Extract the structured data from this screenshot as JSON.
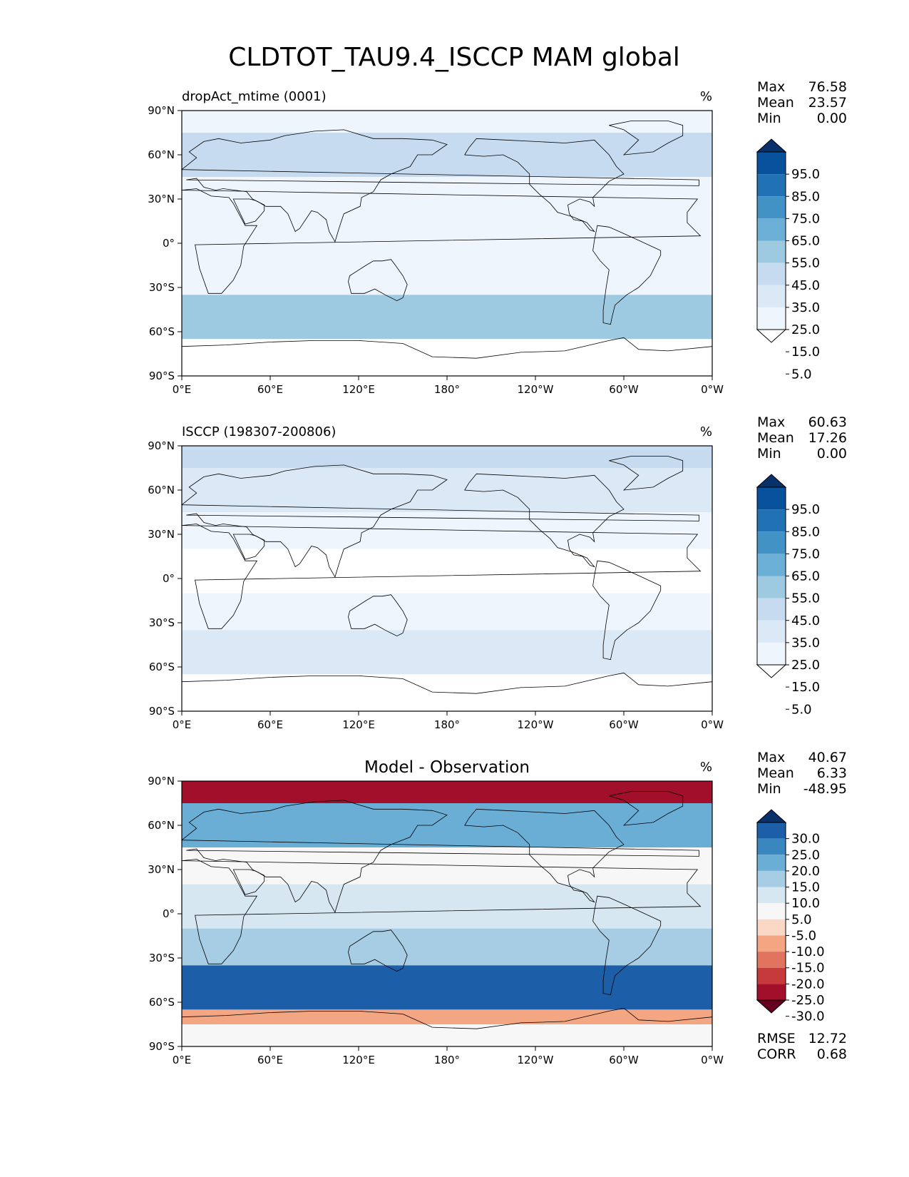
{
  "title": "CLDTOT_TAU9.4_ISCCP MAM global",
  "axes": {
    "lat_ticks": [
      "90°N",
      "60°N",
      "30°N",
      "0°",
      "30°S",
      "60°S",
      "90°S"
    ],
    "lon_ticks": [
      "0°E",
      "60°E",
      "120°E",
      "180°",
      "120°W",
      "60°W",
      "0°W"
    ]
  },
  "panels": [
    {
      "id": "model",
      "left_title": "dropAct_mtime (0001)",
      "center_title": "",
      "units": "%",
      "stats": [
        {
          "label": "Max",
          "value": "76.58"
        },
        {
          "label": "Mean",
          "value": "23.57"
        },
        {
          "label": "Min",
          "value": "0.00"
        }
      ],
      "colorbar": {
        "labels": [
          "95.0",
          "85.0",
          "75.0",
          "65.0",
          "55.0",
          "45.0",
          "35.0",
          "25.0",
          "15.0",
          "5.0"
        ],
        "colors": [
          "#08306b",
          "#08519c",
          "#2171b5",
          "#4292c6",
          "#6baed6",
          "#9ecae1",
          "#c6dbef",
          "#dbe9f6",
          "#eef5fc",
          "#ffffff"
        ],
        "extend_top_color": "#08306b",
        "extend_bottom_color": "#ffffff"
      },
      "footer_stats": []
    },
    {
      "id": "obs",
      "left_title": "ISCCP (198307-200806)",
      "center_title": "",
      "units": "%",
      "stats": [
        {
          "label": "Max",
          "value": "60.63"
        },
        {
          "label": "Mean",
          "value": "17.26"
        },
        {
          "label": "Min",
          "value": "0.00"
        }
      ],
      "colorbar": {
        "labels": [
          "95.0",
          "85.0",
          "75.0",
          "65.0",
          "55.0",
          "45.0",
          "35.0",
          "25.0",
          "15.0",
          "5.0"
        ],
        "colors": [
          "#08306b",
          "#08519c",
          "#2171b5",
          "#4292c6",
          "#6baed6",
          "#9ecae1",
          "#c6dbef",
          "#dbe9f6",
          "#eef5fc",
          "#ffffff"
        ],
        "extend_top_color": "#08306b",
        "extend_bottom_color": "#ffffff"
      },
      "footer_stats": []
    },
    {
      "id": "diff",
      "left_title": "",
      "center_title": "Model - Observation",
      "units": "%",
      "stats": [
        {
          "label": "Max",
          "value": "40.67"
        },
        {
          "label": "Mean",
          "value": "6.33"
        },
        {
          "label": "Min",
          "value": "-48.95"
        }
      ],
      "colorbar": {
        "labels": [
          "30.0",
          "25.0",
          "20.0",
          "15.0",
          "10.0",
          "5.0",
          "-5.0",
          "-10.0",
          "-15.0",
          "-20.0",
          "-25.0",
          "-30.0"
        ],
        "colors": [
          "#08306b",
          "#1c5ea8",
          "#3a87c0",
          "#6aaed6",
          "#a6cde3",
          "#d6e7f1",
          "#f7f7f7",
          "#fbd8c5",
          "#f4a582",
          "#e0745f",
          "#c63a3c",
          "#a10f2b",
          "#67001f"
        ],
        "extend_top_color": "#08306b",
        "extend_bottom_color": "#67001f"
      },
      "footer_stats": [
        {
          "label": "RMSE",
          "value": "12.72"
        },
        {
          "label": "CORR",
          "value": "0.68"
        }
      ]
    }
  ],
  "map_fields": {
    "model": {
      "scale": "sequential-blues",
      "bands": [
        {
          "lat_min": 75,
          "lat_max": 90,
          "value": 18
        },
        {
          "lat_min": 45,
          "lat_max": 75,
          "value": 40
        },
        {
          "lat_min": 20,
          "lat_max": 45,
          "value": 22
        },
        {
          "lat_min": -10,
          "lat_max": 20,
          "value": 15
        },
        {
          "lat_min": -35,
          "lat_max": -10,
          "value": 20
        },
        {
          "lat_min": -65,
          "lat_max": -35,
          "value": 50
        },
        {
          "lat_min": -90,
          "lat_max": -65,
          "value": 5
        }
      ]
    },
    "obs": {
      "scale": "sequential-blues",
      "bands": [
        {
          "lat_min": 75,
          "lat_max": 90,
          "value": 40
        },
        {
          "lat_min": 45,
          "lat_max": 75,
          "value": 30
        },
        {
          "lat_min": 20,
          "lat_max": 45,
          "value": 22
        },
        {
          "lat_min": -10,
          "lat_max": 20,
          "value": 10
        },
        {
          "lat_min": -35,
          "lat_max": -10,
          "value": 15
        },
        {
          "lat_min": -65,
          "lat_max": -35,
          "value": 30
        },
        {
          "lat_min": -90,
          "lat_max": -65,
          "value": 5
        }
      ]
    },
    "diff": {
      "scale": "diverging",
      "bands": [
        {
          "lat_min": 75,
          "lat_max": 90,
          "value": -30
        },
        {
          "lat_min": 45,
          "lat_max": 75,
          "value": 15
        },
        {
          "lat_min": 20,
          "lat_max": 45,
          "value": 3
        },
        {
          "lat_min": -10,
          "lat_max": 20,
          "value": 8
        },
        {
          "lat_min": -35,
          "lat_max": -10,
          "value": 10
        },
        {
          "lat_min": -65,
          "lat_max": -35,
          "value": 25
        },
        {
          "lat_min": -75,
          "lat_max": -65,
          "value": -15
        },
        {
          "lat_min": -90,
          "lat_max": -75,
          "value": 0
        }
      ]
    }
  }
}
